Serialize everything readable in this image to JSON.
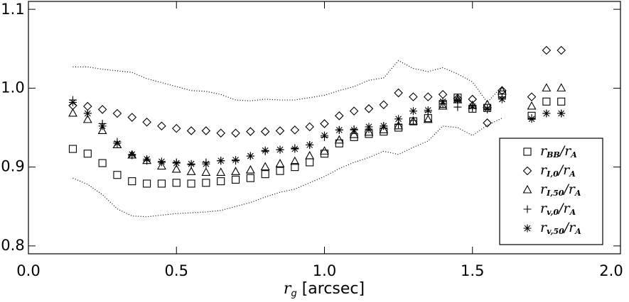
{
  "chart_data": {
    "type": "scatter",
    "xlabel": [
      "r",
      "g",
      " [arcsec]"
    ],
    "xlim": [
      0,
      2.0
    ],
    "ylim": [
      0.79,
      1.11
    ],
    "xticks": [
      {
        "value": 0,
        "label": "0.0"
      },
      0.5,
      {
        "value": 1,
        "label": "1.0"
      },
      1.5,
      {
        "value": 2,
        "label": "2.0"
      }
    ],
    "yticks": [
      0.8,
      0.9,
      {
        "value": 1,
        "label": "1.0"
      },
      1.1
    ],
    "legend": "lower right",
    "series": [
      {
        "name": [
          "r",
          "BB",
          "/",
          "r",
          "A"
        ],
        "marker": "square",
        "color": "#000000",
        "x": [
          0.15,
          0.2,
          0.25,
          0.3,
          0.35,
          0.4,
          0.45,
          0.5,
          0.55,
          0.6,
          0.65,
          0.7,
          0.75,
          0.8,
          0.85,
          0.9,
          0.95,
          1.0,
          1.05,
          1.1,
          1.15,
          1.2,
          1.25,
          1.3,
          1.35,
          1.4,
          1.45,
          1.5,
          1.55,
          1.6,
          1.7,
          1.75,
          1.8
        ],
        "values": [
          0.923,
          0.917,
          0.905,
          0.89,
          0.882,
          0.879,
          0.879,
          0.88,
          0.879,
          0.88,
          0.882,
          0.884,
          0.886,
          0.891,
          0.895,
          0.9,
          0.906,
          0.917,
          0.93,
          0.938,
          0.942,
          0.945,
          0.95,
          0.958,
          0.962,
          0.98,
          0.988,
          0.974,
          0.975,
          0.992,
          0.965,
          0.983,
          0.983
        ]
      },
      {
        "name": [
          "r",
          "I,0",
          "/",
          "r",
          "A"
        ],
        "marker": "diamond",
        "color": "#000000",
        "x": [
          0.15,
          0.2,
          0.25,
          0.3,
          0.35,
          0.4,
          0.45,
          0.5,
          0.55,
          0.6,
          0.65,
          0.7,
          0.75,
          0.8,
          0.85,
          0.9,
          0.95,
          1.0,
          1.05,
          1.1,
          1.15,
          1.2,
          1.25,
          1.3,
          1.35,
          1.4,
          1.45,
          1.5,
          1.55,
          1.6,
          1.7,
          1.75,
          1.8
        ],
        "values": [
          0.978,
          0.977,
          0.973,
          0.968,
          0.963,
          0.957,
          0.952,
          0.949,
          0.946,
          0.946,
          0.943,
          0.943,
          0.945,
          0.945,
          0.946,
          0.947,
          0.951,
          0.955,
          0.965,
          0.971,
          0.974,
          0.979,
          0.994,
          0.989,
          0.989,
          0.992,
          0.987,
          0.986,
          0.956,
          0.997,
          0.989,
          1.048,
          1.048
        ]
      },
      {
        "name": [
          "r",
          "I,50",
          "/",
          "r",
          "A"
        ],
        "marker": "triangle",
        "color": "#000000",
        "x": [
          0.15,
          0.2,
          0.25,
          0.3,
          0.35,
          0.4,
          0.45,
          0.5,
          0.55,
          0.6,
          0.65,
          0.7,
          0.75,
          0.8,
          0.85,
          0.9,
          0.95,
          1.0,
          1.05,
          1.1,
          1.15,
          1.2,
          1.25,
          1.3,
          1.35,
          1.4,
          1.45,
          1.5,
          1.55,
          1.6,
          1.7,
          1.75,
          1.8
        ],
        "values": [
          0.968,
          0.96,
          0.946,
          0.928,
          0.915,
          0.908,
          0.901,
          0.897,
          0.894,
          0.893,
          0.893,
          0.894,
          0.896,
          0.9,
          0.904,
          0.907,
          0.914,
          0.92,
          0.934,
          0.941,
          0.944,
          0.947,
          0.952,
          0.958,
          0.96,
          0.977,
          0.985,
          0.978,
          0.979,
          0.996,
          0.977,
          1.0,
          1.0
        ]
      },
      {
        "name": [
          "r",
          "v,0",
          "/",
          "r",
          "A"
        ],
        "marker": "plus",
        "color": "#000000",
        "x": [
          0.15,
          0.2,
          0.25,
          0.3,
          0.35,
          0.4,
          0.45,
          0.5,
          0.55,
          0.6,
          0.65,
          0.7,
          0.75,
          0.8,
          0.85,
          0.9,
          0.95,
          1.0,
          1.05,
          1.1,
          1.15,
          1.2,
          1.25,
          1.3,
          1.35,
          1.4,
          1.45,
          1.5,
          1.55,
          1.6,
          1.7,
          1.75,
          1.8
        ],
        "values": [
          0.985,
          0.968,
          0.955,
          0.932,
          0.915,
          0.908,
          0.906,
          0.906,
          0.903,
          0.906,
          0.908,
          0.908,
          0.914,
          0.92,
          0.922,
          0.924,
          0.928,
          0.938,
          0.947,
          0.948,
          0.948,
          0.952,
          0.954,
          0.959,
          0.97,
          0.98,
          0.976,
          0.975,
          0.973,
          0.989,
          0.962,
          0.968,
          0.968
        ]
      },
      {
        "name": [
          "r",
          "v,50",
          "/",
          "r",
          "A"
        ],
        "marker": "asterisk",
        "color": "#000000",
        "x": [
          0.15,
          0.2,
          0.25,
          0.3,
          0.35,
          0.4,
          0.45,
          0.5,
          0.55,
          0.6,
          0.65,
          0.7,
          0.75,
          0.8,
          0.85,
          0.9,
          0.95,
          1.0,
          1.05,
          1.1,
          1.15,
          1.2,
          1.25,
          1.3,
          1.35,
          1.4,
          1.45,
          1.5,
          1.55,
          1.6,
          1.7,
          1.75,
          1.8
        ],
        "values": [
          0.982,
          0.968,
          0.952,
          0.93,
          0.916,
          0.91,
          0.907,
          0.905,
          0.904,
          0.904,
          0.908,
          0.909,
          0.914,
          0.921,
          0.922,
          0.923,
          0.928,
          0.94,
          0.947,
          0.947,
          0.951,
          0.952,
          0.961,
          0.971,
          0.972,
          0.983,
          0.985,
          0.977,
          0.974,
          0.986,
          0.961,
          0.968,
          0.968
        ]
      },
      {
        "marker": "dotted-line",
        "color": "#000000",
        "x": [
          0.15,
          0.2,
          0.25,
          0.3,
          0.35,
          0.4,
          0.45,
          0.5,
          0.55,
          0.6,
          0.65,
          0.7,
          0.75,
          0.8,
          0.85,
          0.9,
          0.95,
          1.0,
          1.05,
          1.1,
          1.15,
          1.2,
          1.25,
          1.3,
          1.35,
          1.4,
          1.45,
          1.5,
          1.55,
          1.6
        ],
        "values": [
          1.027,
          1.027,
          1.024,
          1.022,
          1.02,
          1.012,
          1.007,
          1.002,
          0.997,
          0.996,
          0.992,
          0.985,
          0.984,
          0.986,
          0.985,
          0.985,
          0.988,
          0.991,
          0.997,
          1.002,
          1.01,
          1.013,
          1.035,
          1.025,
          1.021,
          1.026,
          1.018,
          1.008,
          0.982,
          1.002
        ]
      },
      {
        "marker": "dotted-line",
        "color": "#000000",
        "x": [
          0.15,
          0.2,
          0.25,
          0.3,
          0.35,
          0.4,
          0.45,
          0.5,
          0.55,
          0.6,
          0.65,
          0.7,
          0.75,
          0.8,
          0.85,
          0.9,
          0.95,
          1.0,
          1.05,
          1.1,
          1.15,
          1.2,
          1.25,
          1.3,
          1.35,
          1.4,
          1.45,
          1.5,
          1.55,
          1.6
        ],
        "values": [
          0.886,
          0.878,
          0.865,
          0.847,
          0.838,
          0.837,
          0.839,
          0.841,
          0.842,
          0.843,
          0.845,
          0.85,
          0.855,
          0.862,
          0.868,
          0.872,
          0.88,
          0.888,
          0.898,
          0.906,
          0.912,
          0.92,
          0.916,
          0.925,
          0.933,
          0.952,
          0.95,
          0.94,
          0.953,
          0.962
        ]
      }
    ]
  }
}
